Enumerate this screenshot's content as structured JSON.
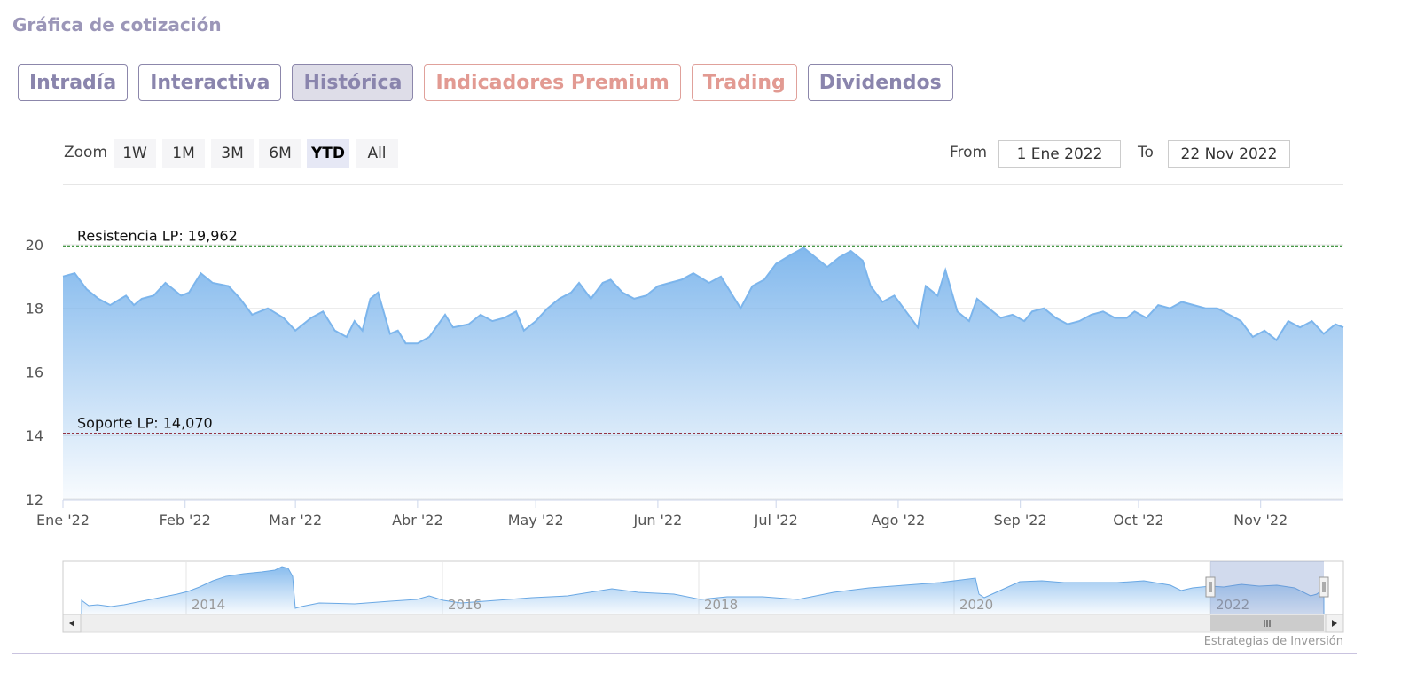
{
  "section_title": "Gráfica de cotización",
  "tabs": [
    {
      "label": "Intradía",
      "active": false,
      "premium": false
    },
    {
      "label": "Interactiva",
      "active": false,
      "premium": false
    },
    {
      "label": "Histórica",
      "active": true,
      "premium": false
    },
    {
      "label": "Indicadores Premium",
      "active": false,
      "premium": true
    },
    {
      "label": "Trading",
      "active": false,
      "premium": true
    },
    {
      "label": "Dividendos",
      "active": false,
      "premium": false
    }
  ],
  "zoom": {
    "label": "Zoom",
    "buttons": [
      "1W",
      "1M",
      "3M",
      "6M",
      "YTD",
      "All"
    ],
    "selected": "YTD"
  },
  "range": {
    "from_label": "From",
    "from_value": "1 Ene 2022",
    "to_label": "To",
    "to_value": "22 Nov 2022"
  },
  "credit": "Estrategias de Inversión",
  "colors": {
    "series": "#7cb5ec",
    "resistance": "#2e8b2e",
    "support": "#8b1a2a",
    "tab_text": "#8a85ad",
    "premium_text": "#e29a92"
  },
  "chart_data": {
    "type": "area",
    "ylim": [
      12,
      20.5
    ],
    "y_ticks": [
      12,
      14,
      16,
      18,
      20
    ],
    "x_tick_labels": [
      {
        "label": "Ene '22",
        "x": "2022-01-01"
      },
      {
        "label": "Feb '22",
        "x": "2022-02-01"
      },
      {
        "label": "Mar '22",
        "x": "2022-03-01"
      },
      {
        "label": "Abr '22",
        "x": "2022-04-01"
      },
      {
        "label": "May '22",
        "x": "2022-05-01"
      },
      {
        "label": "Jun '22",
        "x": "2022-06-01"
      },
      {
        "label": "Jul '22",
        "x": "2022-07-01"
      },
      {
        "label": "Ago '22",
        "x": "2022-08-01"
      },
      {
        "label": "Sep '22",
        "x": "2022-09-01"
      },
      {
        "label": "Oct '22",
        "x": "2022-10-01"
      },
      {
        "label": "Nov '22",
        "x": "2022-11-01"
      }
    ],
    "xlim": [
      "2022-01-01",
      "2022-11-22"
    ],
    "lines": [
      {
        "label": "Resistencia LP: 19,962",
        "value": 19.962
      },
      {
        "label": "Soporte LP: 14,070",
        "value": 14.07
      }
    ],
    "series": [
      {
        "points": [
          [
            "2022-01-01",
            19.0
          ],
          [
            "2022-01-04",
            19.1
          ],
          [
            "2022-01-07",
            18.6
          ],
          [
            "2022-01-10",
            18.3
          ],
          [
            "2022-01-13",
            18.1
          ],
          [
            "2022-01-17",
            18.4
          ],
          [
            "2022-01-19",
            18.1
          ],
          [
            "2022-01-21",
            18.3
          ],
          [
            "2022-01-24",
            18.4
          ],
          [
            "2022-01-27",
            18.8
          ],
          [
            "2022-01-31",
            18.4
          ],
          [
            "2022-02-02",
            18.5
          ],
          [
            "2022-02-05",
            19.1
          ],
          [
            "2022-02-08",
            18.8
          ],
          [
            "2022-02-12",
            18.7
          ],
          [
            "2022-02-15",
            18.3
          ],
          [
            "2022-02-18",
            17.8
          ],
          [
            "2022-02-22",
            18.0
          ],
          [
            "2022-02-26",
            17.7
          ],
          [
            "2022-03-01",
            17.3
          ],
          [
            "2022-03-05",
            17.7
          ],
          [
            "2022-03-08",
            17.9
          ],
          [
            "2022-03-11",
            17.3
          ],
          [
            "2022-03-14",
            17.1
          ],
          [
            "2022-03-16",
            17.6
          ],
          [
            "2022-03-18",
            17.3
          ],
          [
            "2022-03-20",
            18.3
          ],
          [
            "2022-03-22",
            18.5
          ],
          [
            "2022-03-25",
            17.2
          ],
          [
            "2022-03-27",
            17.3
          ],
          [
            "2022-03-29",
            16.9
          ],
          [
            "2022-04-01",
            16.9
          ],
          [
            "2022-04-04",
            17.1
          ],
          [
            "2022-04-08",
            17.8
          ],
          [
            "2022-04-10",
            17.4
          ],
          [
            "2022-04-14",
            17.5
          ],
          [
            "2022-04-17",
            17.8
          ],
          [
            "2022-04-20",
            17.6
          ],
          [
            "2022-04-23",
            17.7
          ],
          [
            "2022-04-26",
            17.9
          ],
          [
            "2022-04-28",
            17.3
          ],
          [
            "2022-05-01",
            17.6
          ],
          [
            "2022-05-04",
            18.0
          ],
          [
            "2022-05-07",
            18.3
          ],
          [
            "2022-05-10",
            18.5
          ],
          [
            "2022-05-12",
            18.8
          ],
          [
            "2022-05-15",
            18.3
          ],
          [
            "2022-05-18",
            18.8
          ],
          [
            "2022-05-20",
            18.9
          ],
          [
            "2022-05-23",
            18.5
          ],
          [
            "2022-05-26",
            18.3
          ],
          [
            "2022-05-29",
            18.4
          ],
          [
            "2022-06-01",
            18.7
          ],
          [
            "2022-06-04",
            18.8
          ],
          [
            "2022-06-07",
            18.9
          ],
          [
            "2022-06-10",
            19.1
          ],
          [
            "2022-06-14",
            18.8
          ],
          [
            "2022-06-17",
            19.0
          ],
          [
            "2022-06-20",
            18.4
          ],
          [
            "2022-06-22",
            18.0
          ],
          [
            "2022-06-25",
            18.7
          ],
          [
            "2022-06-28",
            18.9
          ],
          [
            "2022-07-01",
            19.4
          ],
          [
            "2022-07-05",
            19.7
          ],
          [
            "2022-07-08",
            19.9
          ],
          [
            "2022-07-11",
            19.6
          ],
          [
            "2022-07-14",
            19.3
          ],
          [
            "2022-07-17",
            19.6
          ],
          [
            "2022-07-20",
            19.8
          ],
          [
            "2022-07-23",
            19.5
          ],
          [
            "2022-07-25",
            18.7
          ],
          [
            "2022-07-28",
            18.2
          ],
          [
            "2022-07-31",
            18.4
          ],
          [
            "2022-08-03",
            17.9
          ],
          [
            "2022-08-06",
            17.4
          ],
          [
            "2022-08-08",
            18.7
          ],
          [
            "2022-08-11",
            18.4
          ],
          [
            "2022-08-13",
            19.2
          ],
          [
            "2022-08-16",
            17.9
          ],
          [
            "2022-08-19",
            17.6
          ],
          [
            "2022-08-21",
            18.3
          ],
          [
            "2022-08-24",
            18.0
          ],
          [
            "2022-08-27",
            17.7
          ],
          [
            "2022-08-30",
            17.8
          ],
          [
            "2022-09-02",
            17.6
          ],
          [
            "2022-09-04",
            17.9
          ],
          [
            "2022-09-07",
            18.0
          ],
          [
            "2022-09-10",
            17.7
          ],
          [
            "2022-09-13",
            17.5
          ],
          [
            "2022-09-16",
            17.6
          ],
          [
            "2022-09-19",
            17.8
          ],
          [
            "2022-09-22",
            17.9
          ],
          [
            "2022-09-25",
            17.7
          ],
          [
            "2022-09-28",
            17.7
          ],
          [
            "2022-09-30",
            17.9
          ],
          [
            "2022-10-03",
            17.7
          ],
          [
            "2022-10-06",
            18.1
          ],
          [
            "2022-10-09",
            18.0
          ],
          [
            "2022-10-12",
            18.2
          ],
          [
            "2022-10-15",
            18.1
          ],
          [
            "2022-10-18",
            18.0
          ],
          [
            "2022-10-21",
            18.0
          ],
          [
            "2022-10-24",
            17.8
          ],
          [
            "2022-10-27",
            17.6
          ],
          [
            "2022-10-30",
            17.1
          ],
          [
            "2022-11-02",
            17.3
          ],
          [
            "2022-11-05",
            17.0
          ],
          [
            "2022-11-08",
            17.6
          ],
          [
            "2022-11-11",
            17.4
          ],
          [
            "2022-11-14",
            17.6
          ],
          [
            "2022-11-17",
            17.2
          ],
          [
            "2022-11-20",
            17.5
          ],
          [
            "2022-11-22",
            17.4
          ]
        ]
      }
    ]
  },
  "navigator": {
    "year_labels": [
      "2014",
      "2016",
      "2018",
      "2020",
      "2022"
    ]
  }
}
